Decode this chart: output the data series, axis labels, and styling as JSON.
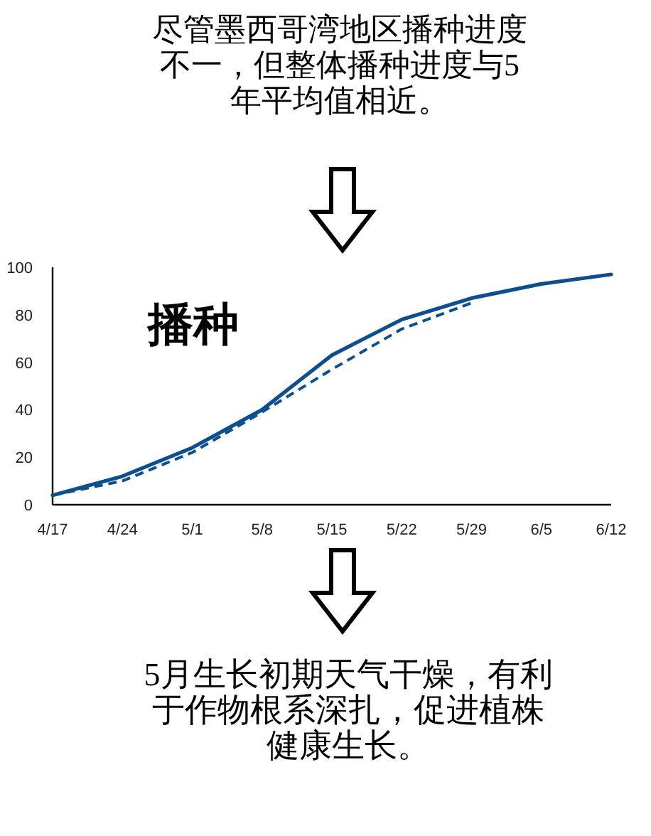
{
  "chart_data": {
    "type": "line",
    "title": "尽管墨西哥湾地区播种进度不一，但整体播种进度与5年平均值相近。",
    "categories": [
      "4/17",
      "4/24",
      "5/1",
      "5/8",
      "5/15",
      "5/22",
      "5/29",
      "6/5",
      "6/12"
    ],
    "series": [
      {
        "color": "#0d4f8e",
        "line_style": "solid",
        "values": [
          4,
          12,
          24,
          40,
          63,
          78,
          87,
          93,
          97
        ]
      },
      {
        "color": "#0d4f8e",
        "line_style": "dashed",
        "values": [
          4,
          10,
          22,
          39,
          57,
          74,
          85,
          null,
          null
        ]
      }
    ],
    "ylim": [
      0,
      100
    ],
    "yticks": [
      0,
      20,
      40,
      60,
      80,
      100
    ],
    "grid": false,
    "marker": "none",
    "annotations": [
      "播种",
      "5月生长初期天气干燥，有利于作物根系深扎，促进植株健康生长。"
    ]
  }
}
